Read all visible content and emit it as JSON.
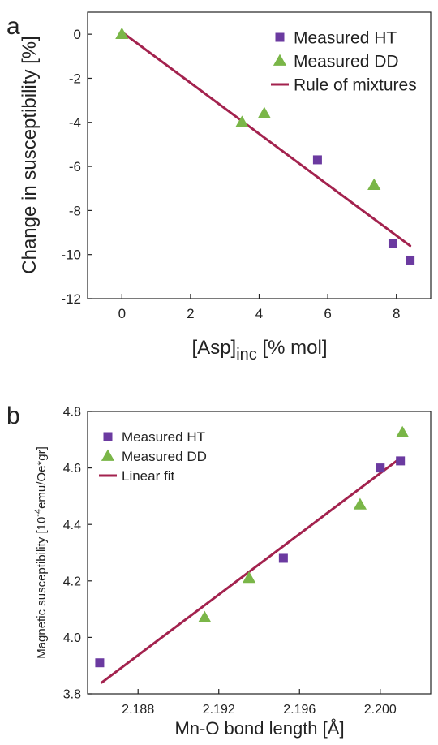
{
  "chart_data": [
    {
      "panel_label": "a",
      "type": "scatter",
      "xlabel": "[Asp]",
      "xlabel_sub": "inc",
      "xlabel_suffix": " [% mol]",
      "ylabel": "Change in susceptibility [%]",
      "xlim": [
        -1,
        9
      ],
      "ylim": [
        -12,
        1
      ],
      "xticks": [
        0,
        2,
        4,
        6,
        8
      ],
      "yticks": [
        0,
        -2,
        -4,
        -6,
        -8,
        -10,
        -12
      ],
      "grid": false,
      "legend_position": "top-right",
      "series": [
        {
          "name": "Measured HT",
          "marker": "square",
          "color": "#6b3aa0",
          "x": [
            5.7,
            7.9,
            8.4
          ],
          "y": [
            -5.7,
            -9.5,
            -10.25
          ]
        },
        {
          "name": "Measured DD",
          "marker": "triangle",
          "color": "#7ab648",
          "x": [
            0,
            3.5,
            4.15,
            7.35
          ],
          "y": [
            0,
            -4.0,
            -3.6,
            -6.85
          ]
        },
        {
          "name": "Rule of mixtures",
          "marker": "line",
          "color": "#a3224e",
          "x": [
            0,
            8.4
          ],
          "y": [
            0.1,
            -9.6
          ]
        }
      ]
    },
    {
      "panel_label": "b",
      "type": "scatter",
      "xlabel": "Mn-O bond length [Å]",
      "ylabel": "Magnetic susceptibility [10",
      "ylabel_sup": "-4",
      "ylabel_suffix": "emu/Oe*gr]",
      "xlim": [
        2.1855,
        2.2025
      ],
      "ylim": [
        3.8,
        4.8
      ],
      "xticks": [
        "2.188",
        "2.192",
        "2.196",
        "2.200"
      ],
      "yticks": [
        "3.8",
        "4.0",
        "4.2",
        "4.4",
        "4.6",
        "4.8"
      ],
      "grid": false,
      "legend_position": "top-left",
      "series": [
        {
          "name": "Measured HT",
          "marker": "square",
          "color": "#6b3aa0",
          "x": [
            2.1861,
            2.1952,
            2.2,
            2.201
          ],
          "y": [
            3.91,
            4.28,
            4.6,
            4.625
          ]
        },
        {
          "name": "Measured DD",
          "marker": "triangle",
          "color": "#7ab648",
          "x": [
            2.1913,
            2.1935,
            2.199,
            2.2011
          ],
          "y": [
            4.07,
            4.21,
            4.47,
            4.725
          ]
        },
        {
          "name": "Linear fit",
          "marker": "line",
          "color": "#a3224e",
          "x": [
            2.1862,
            2.201
          ],
          "y": [
            3.84,
            4.635
          ]
        }
      ]
    }
  ]
}
